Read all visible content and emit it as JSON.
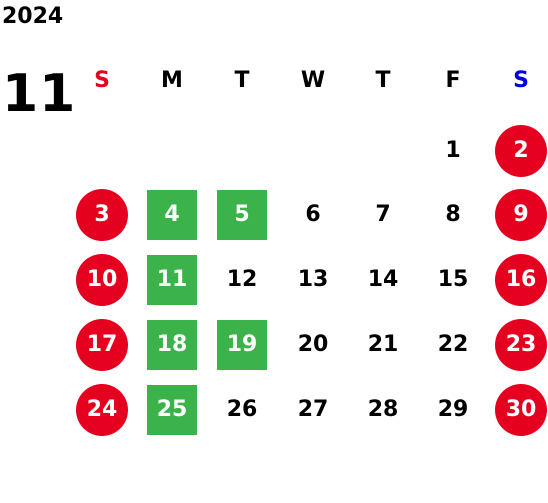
{
  "calendar": {
    "year": "2024",
    "month": "11",
    "weekdays": [
      {
        "label": "S",
        "color": "#e60020"
      },
      {
        "label": "M",
        "color": "#000000"
      },
      {
        "label": "T",
        "color": "#000000"
      },
      {
        "label": "W",
        "color": "#000000"
      },
      {
        "label": "T",
        "color": "#000000"
      },
      {
        "label": "F",
        "color": "#000000"
      },
      {
        "label": "S",
        "color": "#0000e6"
      }
    ],
    "colors": {
      "holiday_circle": "#e60020",
      "highlight_square": "#3cb34a",
      "default_text": "#000000"
    },
    "days": [
      {
        "n": "1",
        "style": "plain"
      },
      {
        "n": "2",
        "style": "holiday"
      },
      {
        "n": "3",
        "style": "holiday"
      },
      {
        "n": "4",
        "style": "green"
      },
      {
        "n": "5",
        "style": "green"
      },
      {
        "n": "6",
        "style": "plain"
      },
      {
        "n": "7",
        "style": "plain"
      },
      {
        "n": "8",
        "style": "plain"
      },
      {
        "n": "9",
        "style": "holiday"
      },
      {
        "n": "10",
        "style": "holiday"
      },
      {
        "n": "11",
        "style": "green"
      },
      {
        "n": "12",
        "style": "plain"
      },
      {
        "n": "13",
        "style": "plain"
      },
      {
        "n": "14",
        "style": "plain"
      },
      {
        "n": "15",
        "style": "plain"
      },
      {
        "n": "16",
        "style": "holiday"
      },
      {
        "n": "17",
        "style": "holiday"
      },
      {
        "n": "18",
        "style": "green"
      },
      {
        "n": "19",
        "style": "green"
      },
      {
        "n": "20",
        "style": "plain"
      },
      {
        "n": "21",
        "style": "plain"
      },
      {
        "n": "22",
        "style": "plain"
      },
      {
        "n": "23",
        "style": "holiday"
      },
      {
        "n": "24",
        "style": "holiday"
      },
      {
        "n": "25",
        "style": "green"
      },
      {
        "n": "26",
        "style": "plain"
      },
      {
        "n": "27",
        "style": "plain"
      },
      {
        "n": "28",
        "style": "plain"
      },
      {
        "n": "29",
        "style": "plain"
      },
      {
        "n": "30",
        "style": "holiday"
      }
    ]
  }
}
